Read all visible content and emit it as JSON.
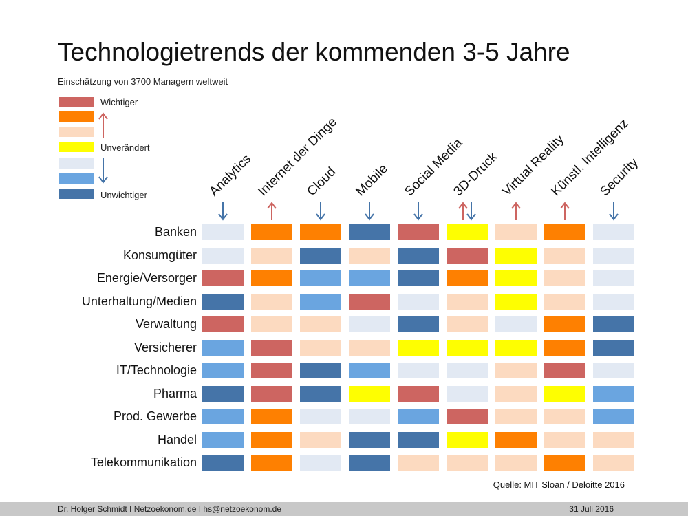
{
  "title": "Technologietrends der kommenden 3-5 Jahre",
  "subtitle": "Einschätzung von 3700 Managern weltweit",
  "legend": {
    "top": "Wichtiger",
    "middle": "Unverändert",
    "bottom": "Unwichtiger"
  },
  "colors": {
    "level1": "#cd6561",
    "level2": "#fe8001",
    "level3": "#fcdac0",
    "level4": "#fefe01",
    "level5": "#e2e9f3",
    "level6": "#6aa5e0",
    "level7": "#4574a8",
    "arrow_up": "#cd6561",
    "arrow_down": "#4574a8"
  },
  "source": "Quelle: MIT Sloan / Deloitte 2016",
  "footer": {
    "left": "Dr. Holger Schmidt  I  Netzoekonom.de  I  hs@netzoekonom.de",
    "right": "31 Juli 2016"
  },
  "chart_data": {
    "type": "heatmap",
    "scale": "1 = Wichtiger, 4 = Unverändert, 7 = Unwichtiger",
    "columns": [
      "Analytics",
      "Internet der Dinge",
      "Cloud",
      "Mobile",
      "Social Media",
      "3D-Druck",
      "Virtual Reality",
      "Künstl. Intelligenz",
      "Security"
    ],
    "column_arrows": [
      [
        "down"
      ],
      [
        "up"
      ],
      [
        "down"
      ],
      [
        "down"
      ],
      [
        "down"
      ],
      [
        "up",
        "down"
      ],
      [
        "up"
      ],
      [
        "up"
      ],
      [
        "down"
      ]
    ],
    "rows": [
      "Banken",
      "Konsumgüter",
      "Energie/Versorger",
      "Unterhaltung/Medien",
      "Verwaltung",
      "Versicherer",
      "IT/Technologie",
      "Pharma",
      "Prod. Gewerbe",
      "Handel",
      "Telekommunikation"
    ],
    "values": [
      [
        5,
        2,
        2,
        7,
        1,
        4,
        3,
        2,
        5
      ],
      [
        5,
        3,
        7,
        3,
        7,
        1,
        4,
        3,
        5
      ],
      [
        1,
        2,
        6,
        6,
        7,
        2,
        4,
        3,
        5
      ],
      [
        7,
        3,
        6,
        1,
        5,
        3,
        4,
        3,
        5
      ],
      [
        1,
        3,
        3,
        5,
        7,
        3,
        5,
        2,
        7
      ],
      [
        6,
        1,
        3,
        3,
        4,
        4,
        4,
        2,
        7
      ],
      [
        6,
        1,
        7,
        6,
        5,
        5,
        3,
        1,
        5
      ],
      [
        7,
        1,
        7,
        4,
        1,
        5,
        3,
        4,
        6
      ],
      [
        6,
        2,
        5,
        5,
        6,
        1,
        3,
        3,
        6
      ],
      [
        6,
        2,
        3,
        7,
        7,
        4,
        2,
        3,
        3
      ],
      [
        7,
        2,
        5,
        7,
        3,
        3,
        3,
        2,
        3
      ]
    ]
  }
}
